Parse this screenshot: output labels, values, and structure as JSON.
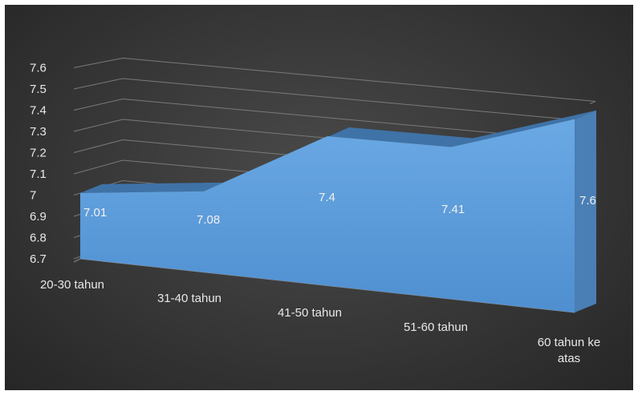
{
  "chart_data": {
    "type": "area",
    "three_d": true,
    "categories": [
      "20-30 tahun",
      "31-40 tahun",
      "41-50 tahun",
      "51-60 tahun",
      "60 tahun ke atas"
    ],
    "values": [
      7.01,
      7.08,
      7.4,
      7.41,
      7.6
    ],
    "y_ticks": [
      "6.7",
      "6.8",
      "6.9",
      "7",
      "7.1",
      "7.2",
      "7.3",
      "7.4",
      "7.5",
      "7.6"
    ],
    "ylim": [
      6.7,
      7.6
    ],
    "data_labels": [
      "7.01",
      "7.08",
      "7.4",
      "7.41",
      "7.6"
    ],
    "colors": {
      "background": "#333333",
      "area_front": "#5b9bd5",
      "area_top": "#3f73a8",
      "area_side": "#4a7fb5",
      "grid": "#7a7a7a",
      "text": "#e8e8e8"
    },
    "grid": true,
    "legend": "none"
  }
}
